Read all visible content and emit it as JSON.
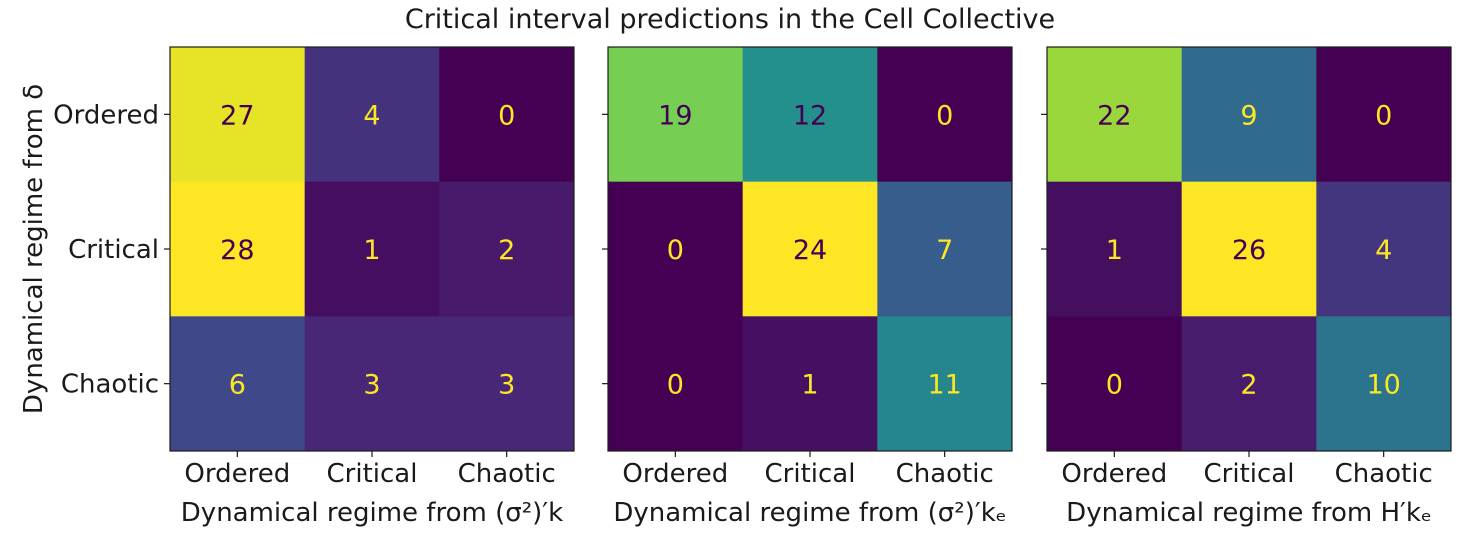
{
  "title": "Critical interval predictions in the Cell Collective",
  "chart_data": [
    {
      "type": "heatmap",
      "categories_x": [
        "Ordered",
        "Critical",
        "Chaotic"
      ],
      "categories_y": [
        "Ordered",
        "Critical",
        "Chaotic"
      ],
      "values": [
        [
          27,
          4,
          0
        ],
        [
          28,
          1,
          2
        ],
        [
          6,
          3,
          3
        ]
      ],
      "xlabel": "Dynamical regime from (σ²)′k",
      "ylabel": "Dynamical regime from δ",
      "colormap": "viridis",
      "colorbar": false
    },
    {
      "type": "heatmap",
      "categories_x": [
        "Ordered",
        "Critical",
        "Chaotic"
      ],
      "categories_y": [
        "Ordered",
        "Critical",
        "Chaotic"
      ],
      "values": [
        [
          19,
          12,
          0
        ],
        [
          0,
          24,
          7
        ],
        [
          0,
          1,
          11
        ]
      ],
      "xlabel": "Dynamical regime from (σ²)′kₑ",
      "ylabel": "",
      "colormap": "viridis",
      "colorbar": false
    },
    {
      "type": "heatmap",
      "categories_x": [
        "Ordered",
        "Critical",
        "Chaotic"
      ],
      "categories_y": [
        "Ordered",
        "Critical",
        "Chaotic"
      ],
      "values": [
        [
          22,
          9,
          0
        ],
        [
          1,
          26,
          4
        ],
        [
          0,
          2,
          10
        ]
      ],
      "xlabel": "Dynamical regime from H′kₑ",
      "ylabel": "",
      "colormap": "viridis",
      "colorbar": false
    }
  ],
  "colors": {
    "dark_text": "#440154",
    "light_text": "#fde725"
  }
}
